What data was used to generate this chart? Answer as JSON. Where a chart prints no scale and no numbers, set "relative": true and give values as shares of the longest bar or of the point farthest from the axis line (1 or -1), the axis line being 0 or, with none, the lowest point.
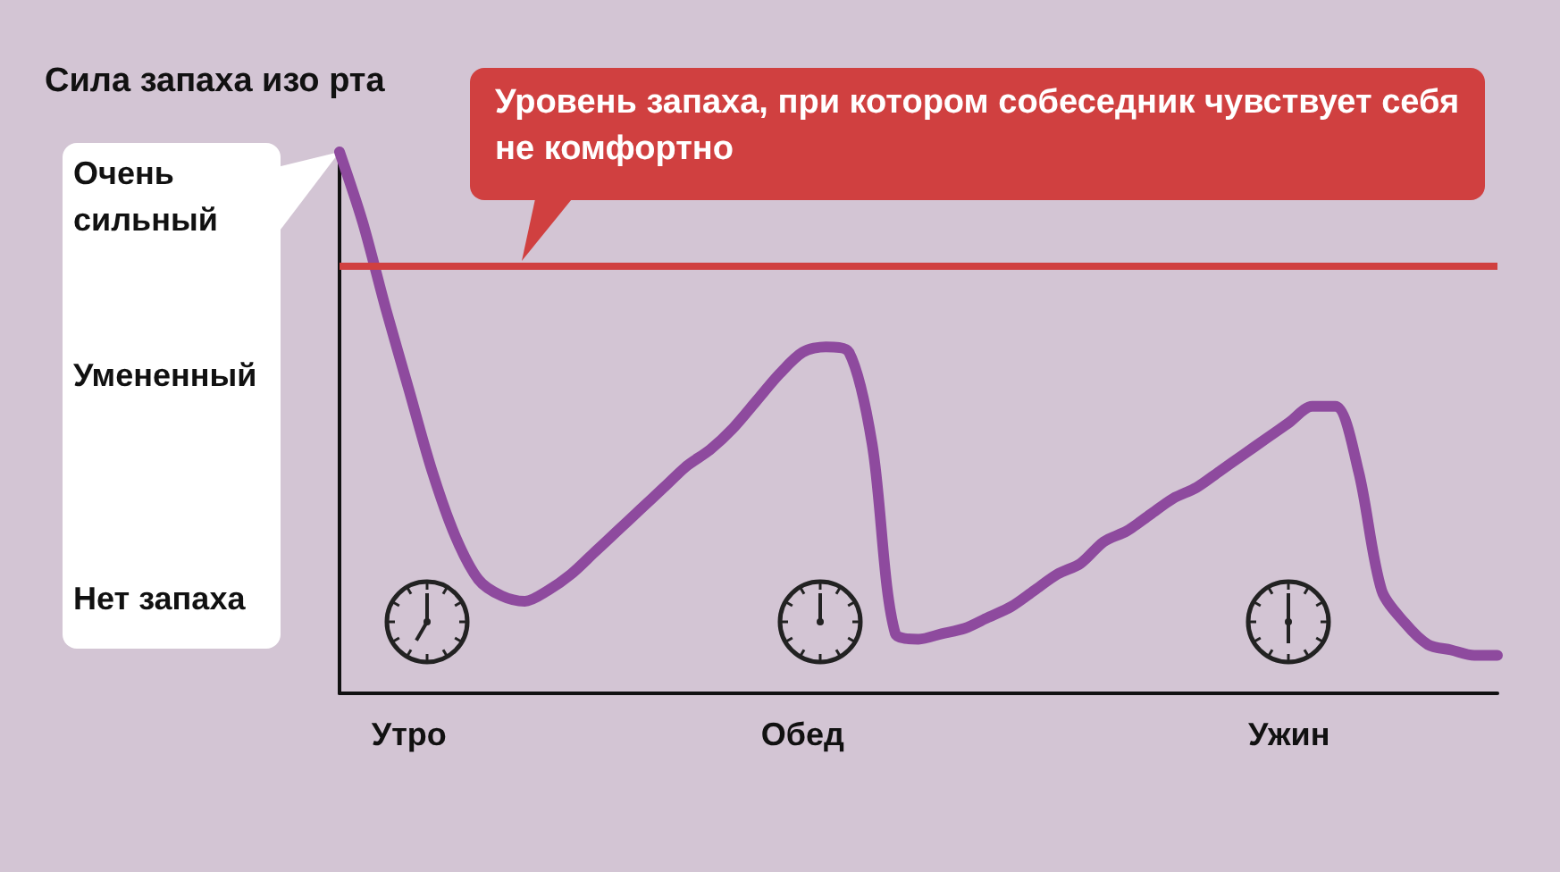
{
  "chart_data": {
    "type": "line",
    "relative": true,
    "ylabel": "Сила запаха изо рта",
    "categories": [
      null,
      null,
      null,
      "Утро",
      null,
      null,
      null,
      null,
      null,
      null,
      null,
      null,
      null,
      null,
      null,
      null,
      null,
      null,
      null,
      null,
      "Обед",
      null,
      null,
      null,
      null,
      null,
      null,
      null,
      null,
      null,
      null,
      null,
      null,
      null,
      null,
      null,
      null,
      null,
      null,
      null,
      null,
      "Ужин",
      null,
      null,
      null,
      null,
      null,
      null,
      null,
      null,
      null
    ],
    "series": [
      {
        "color": "#8e4a9e",
        "values": [
          1,
          0.87,
          0.71,
          0.56,
          0.41,
          0.29,
          0.21,
          0.18,
          0.17,
          0.19,
          0.22,
          0.26,
          0.3,
          0.34,
          0.38,
          0.42,
          0.45,
          0.49,
          0.54,
          0.59,
          0.63,
          0.64,
          0.63,
          0.46,
          0.11,
          0.1,
          0.11,
          0.12,
          0.14,
          0.16,
          0.19,
          0.22,
          0.24,
          0.28,
          0.3,
          0.33,
          0.36,
          0.38,
          0.41,
          0.44,
          0.47,
          0.5,
          0.53,
          0.53,
          0.41,
          0.19,
          0.13,
          0.09,
          0.08,
          0.07,
          0.07
        ]
      }
    ],
    "annotations": [
      "Очень сильный",
      "Умененный",
      "Нет запаха"
    ],
    "ref_lines": [
      {
        "axis": "y",
        "value": 0.79,
        "label": "Уровень запаха, при котором собеседник чувствует себя не комфортно",
        "color": "#d04040"
      }
    ],
    "grid": false,
    "marker": "none",
    "line_style": "solid"
  }
}
